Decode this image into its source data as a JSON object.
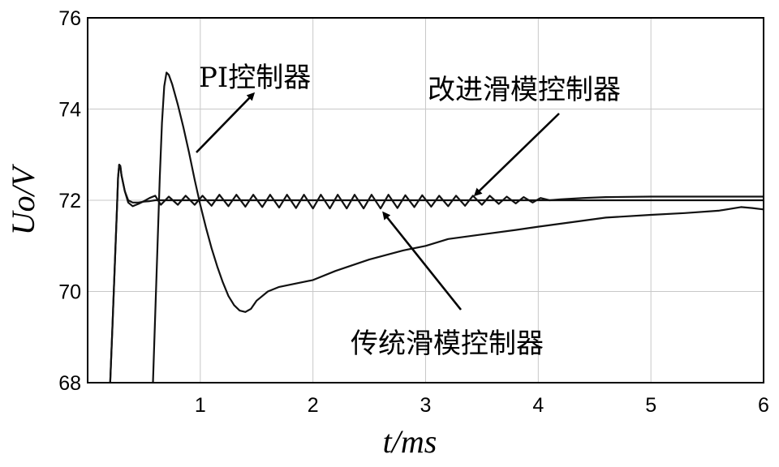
{
  "chart_data": {
    "type": "line",
    "title": "",
    "xlabel": "t/ms",
    "ylabel": "Uo/V",
    "xlim": [
      0,
      6
    ],
    "ylim": [
      68,
      76
    ],
    "x_ticks": [
      1,
      2,
      3,
      4,
      5,
      6
    ],
    "y_ticks": [
      68,
      70,
      72,
      74,
      76
    ],
    "grid": true,
    "series": [
      {
        "name": "PI控制器",
        "x": [
          0.58,
          0.6,
          0.62,
          0.64,
          0.66,
          0.68,
          0.7,
          0.72,
          0.75,
          0.8,
          0.85,
          0.9,
          0.95,
          1.0,
          1.05,
          1.1,
          1.15,
          1.2,
          1.25,
          1.3,
          1.35,
          1.4,
          1.45,
          1.5,
          1.6,
          1.7,
          1.8,
          2.0,
          2.2,
          2.5,
          2.8,
          3.0,
          3.2,
          3.5,
          3.8,
          4.0,
          4.3,
          4.6,
          5.0,
          5.3,
          5.6,
          5.8,
          5.9,
          6.0
        ],
        "y": [
          68.0,
          69.5,
          71.0,
          72.5,
          73.7,
          74.5,
          74.8,
          74.75,
          74.55,
          74.1,
          73.6,
          73.05,
          72.45,
          71.9,
          71.4,
          70.95,
          70.55,
          70.2,
          69.9,
          69.7,
          69.58,
          69.55,
          69.62,
          69.8,
          70.0,
          70.1,
          70.15,
          70.25,
          70.45,
          70.7,
          70.9,
          71.0,
          71.15,
          71.25,
          71.35,
          71.42,
          71.52,
          71.62,
          71.68,
          71.72,
          71.77,
          71.85,
          71.83,
          71.8
        ]
      },
      {
        "name": "改进滑模控制器",
        "x": [
          0.2,
          0.22,
          0.24,
          0.26,
          0.27,
          0.28,
          0.29,
          0.3,
          0.33,
          0.36,
          0.4,
          0.45,
          0.5,
          0.55,
          0.6,
          0.7,
          0.8,
          1.0,
          1.5,
          2.0,
          3.0,
          4.0,
          4.5,
          5.0,
          6.0
        ],
        "y": [
          68.0,
          69.2,
          70.5,
          71.8,
          72.5,
          72.78,
          72.75,
          72.55,
          72.2,
          72.0,
          71.95,
          71.95,
          71.97,
          71.98,
          72.0,
          72.0,
          72.0,
          72.0,
          72.0,
          72.0,
          72.0,
          72.0,
          72.0,
          72.0,
          72.0
        ]
      },
      {
        "name": "传统滑模控制器",
        "x": [
          0.2,
          0.22,
          0.24,
          0.26,
          0.27,
          0.28,
          0.29,
          0.3,
          0.33,
          0.36,
          0.4,
          0.45,
          0.5,
          0.55,
          0.6,
          0.65,
          0.72,
          0.8,
          0.87,
          0.95,
          1.02,
          1.1,
          1.17,
          1.25,
          1.32,
          1.4,
          1.47,
          1.55,
          1.62,
          1.7,
          1.77,
          1.85,
          1.92,
          2.0,
          2.07,
          2.15,
          2.22,
          2.3,
          2.37,
          2.45,
          2.52,
          2.6,
          2.67,
          2.75,
          2.82,
          2.9,
          2.97,
          3.05,
          3.12,
          3.2,
          3.27,
          3.35,
          3.42,
          3.5,
          3.57,
          3.65,
          3.72,
          3.8,
          3.87,
          3.95,
          4.02,
          4.1,
          4.2,
          4.4,
          4.6,
          5.0,
          5.5,
          6.0
        ],
        "y": [
          68.0,
          69.2,
          70.5,
          71.8,
          72.5,
          72.78,
          72.75,
          72.55,
          72.2,
          71.95,
          71.87,
          71.92,
          71.98,
          72.05,
          72.1,
          71.9,
          72.08,
          71.9,
          72.1,
          71.9,
          72.1,
          71.88,
          72.12,
          71.87,
          72.12,
          71.86,
          72.12,
          71.85,
          72.12,
          71.84,
          72.12,
          71.83,
          72.12,
          71.82,
          72.12,
          71.82,
          72.12,
          71.82,
          72.12,
          71.82,
          72.12,
          71.82,
          72.12,
          71.83,
          72.11,
          71.85,
          72.11,
          71.86,
          72.1,
          71.87,
          72.1,
          71.88,
          72.1,
          71.9,
          72.1,
          71.92,
          72.08,
          71.93,
          72.07,
          71.95,
          72.05,
          72.0,
          72.02,
          72.05,
          72.07,
          72.08,
          72.08,
          72.08
        ]
      }
    ],
    "annotations": [
      {
        "text": "PI控制器",
        "series": "PI控制器"
      },
      {
        "text": "改进滑模控制器",
        "series": "改进滑模控制器"
      },
      {
        "text": "传统滑模控制器",
        "series": "传统滑模控制器"
      }
    ]
  }
}
